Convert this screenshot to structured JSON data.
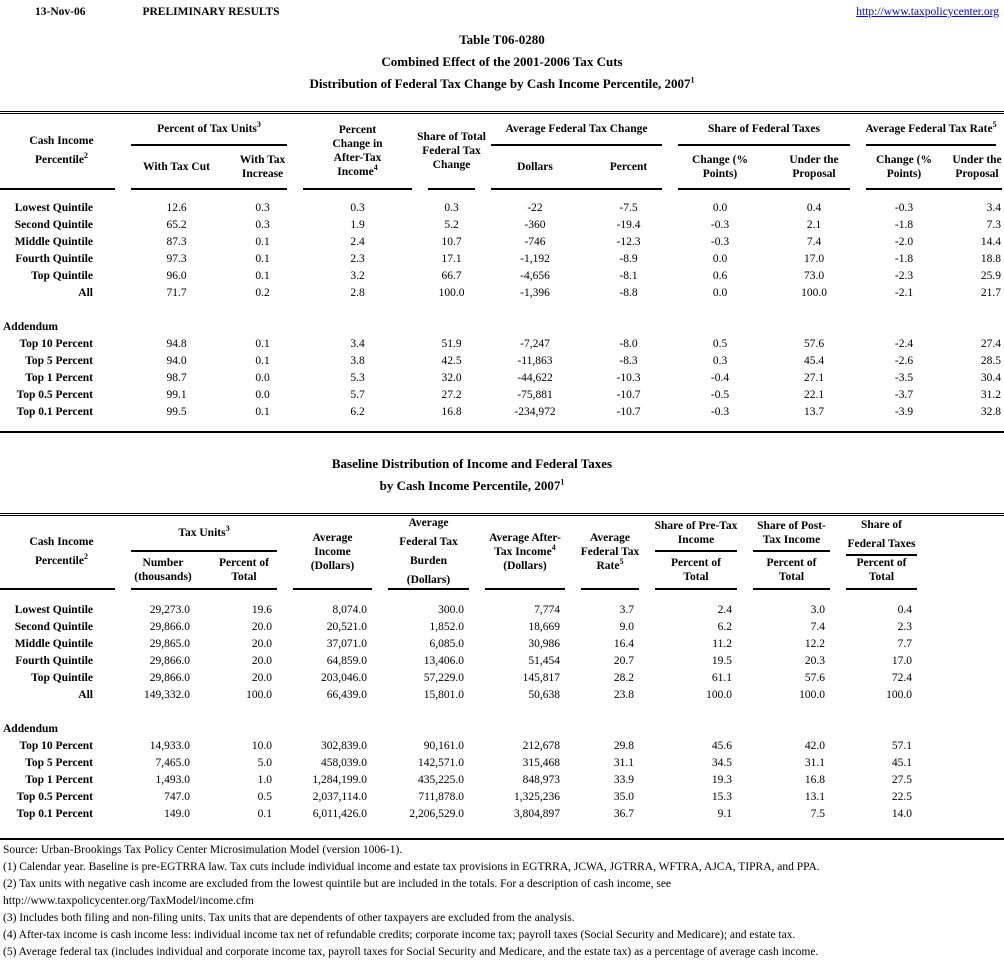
{
  "page": {
    "date": "13-Nov-06",
    "status": "PRELIMINARY RESULTS",
    "site_link": "http://www.taxpolicycenter.org",
    "colors": {
      "link": "#0000ee",
      "text": "#000000",
      "background": "#ffffff"
    }
  },
  "table1": {
    "title1": "Table T06-0280",
    "title2": "Combined Effect of the 2001-2006 Tax Cuts",
    "title3": {
      "pre": "Distribution of Federal Tax Change by Cash Income Percentile, 2007",
      "sup": "1"
    },
    "header": {
      "cash_income_percentile": {
        "pre": "Cash Income Percentile",
        "sup": "2"
      },
      "percent_of_tax_units": {
        "pre": "Percent of Tax Units",
        "sup": "3"
      },
      "with_tax_cut": "With Tax Cut",
      "with_tax_increase": "With Tax Increase",
      "pct_change_after_tax_income": {
        "pre": "Percent Change in After-Tax Income",
        "sup": "4"
      },
      "share_total_federal_tax_change": "Share of Total Federal Tax Change",
      "avg_federal_tax_change": "Average Federal Tax Change",
      "dollars": "Dollars",
      "percent": "Percent",
      "share_federal_taxes": "Share of Federal Taxes",
      "change_pct_points": "Change (% Points)",
      "under_the_proposal": "Under the Proposal",
      "avg_federal_tax_rate": {
        "pre": "Average Federal Tax Rate",
        "sup": "5"
      }
    },
    "rows": [
      {
        "label": "Lowest Quintile",
        "values": [
          "12.6",
          "0.3",
          "0.3",
          "0.3",
          "-22",
          "-7.5",
          "0.0",
          "0.4",
          "-0.3",
          "3.4"
        ]
      },
      {
        "label": "Second Quintile",
        "values": [
          "65.2",
          "0.3",
          "1.9",
          "5.2",
          "-360",
          "-19.4",
          "-0.3",
          "2.1",
          "-1.8",
          "7.3"
        ]
      },
      {
        "label": "Middle Quintile",
        "values": [
          "87.3",
          "0.1",
          "2.4",
          "10.7",
          "-746",
          "-12.3",
          "-0.3",
          "7.4",
          "-2.0",
          "14.4"
        ]
      },
      {
        "label": "Fourth Quintile",
        "values": [
          "97.3",
          "0.1",
          "2.3",
          "17.1",
          "-1,192",
          "-8.9",
          "0.0",
          "17.0",
          "-1.8",
          "18.8"
        ]
      },
      {
        "label": "Top Quintile",
        "values": [
          "96.0",
          "0.1",
          "3.2",
          "66.7",
          "-4,656",
          "-8.1",
          "0.6",
          "73.0",
          "-2.3",
          "25.9"
        ]
      },
      {
        "label": "All",
        "values": [
          "71.7",
          "0.2",
          "2.8",
          "100.0",
          "-1,396",
          "-8.8",
          "0.0",
          "100.0",
          "-2.1",
          "21.7"
        ]
      },
      {
        "type": "spacer"
      },
      {
        "type": "section",
        "label": "Addendum"
      },
      {
        "label": "Top 10 Percent",
        "values": [
          "94.8",
          "0.1",
          "3.4",
          "51.9",
          "-7,247",
          "-8.0",
          "0.5",
          "57.6",
          "-2.4",
          "27.4"
        ]
      },
      {
        "label": "Top 5 Percent",
        "values": [
          "94.0",
          "0.1",
          "3.8",
          "42.5",
          "-11,863",
          "-8.3",
          "0.3",
          "45.4",
          "-2.6",
          "28.5"
        ]
      },
      {
        "label": "Top 1 Percent",
        "values": [
          "98.7",
          "0.0",
          "5.3",
          "32.0",
          "-44,622",
          "-10.3",
          "-0.4",
          "27.1",
          "-3.5",
          "30.4"
        ]
      },
      {
        "label": "Top 0.5 Percent",
        "values": [
          "99.1",
          "0.0",
          "5.7",
          "27.2",
          "-75,881",
          "-10.7",
          "-0.5",
          "22.1",
          "-3.7",
          "31.2"
        ]
      },
      {
        "label": "Top 0.1 Percent",
        "values": [
          "99.5",
          "0.1",
          "6.2",
          "16.8",
          "-234,972",
          "-10.7",
          "-0.3",
          "13.7",
          "-3.9",
          "32.8"
        ]
      }
    ]
  },
  "table2": {
    "title1": "Baseline Distribution of Income and Federal Taxes",
    "title2": {
      "pre": "by Cash Income Percentile, 2007",
      "sup": "1"
    },
    "header": {
      "cash_income_percentile": {
        "pre": "Cash Income Percentile",
        "sup": "2"
      },
      "tax_units": {
        "pre": "Tax Units",
        "sup": "3"
      },
      "number_thousands": "Number (thousands)",
      "percent_of_total": "Percent of Total",
      "average_income": "Average Income (Dollars)",
      "average_federal_tax_burden": "Average Federal Tax Burden (Dollars)",
      "average_after_tax_income": {
        "pre": "Average After-Tax Income",
        "sup": "4",
        "post": " (Dollars)"
      },
      "average_federal_tax_rate": {
        "pre": "Average Federal Tax Rate",
        "sup": "5"
      },
      "share_pre_tax_income": "Share of Pre-Tax Income",
      "share_post_tax_income": "Share of Post-Tax Income",
      "share_federal_taxes": "Share of Federal Taxes"
    },
    "rows": [
      {
        "label": "Lowest Quintile",
        "values": [
          "29,273.0",
          "19.6",
          "8,074.0",
          "300.0",
          "7,774",
          "3.7",
          "2.4",
          "3.0",
          "0.4"
        ]
      },
      {
        "label": "Second Quintile",
        "values": [
          "29,866.0",
          "20.0",
          "20,521.0",
          "1,852.0",
          "18,669",
          "9.0",
          "6.2",
          "7.4",
          "2.3"
        ]
      },
      {
        "label": "Middle Quintile",
        "values": [
          "29,865.0",
          "20.0",
          "37,071.0",
          "6,085.0",
          "30,986",
          "16.4",
          "11.2",
          "12.2",
          "7.7"
        ]
      },
      {
        "label": "Fourth Quintile",
        "values": [
          "29,866.0",
          "20.0",
          "64,859.0",
          "13,406.0",
          "51,454",
          "20.7",
          "19.5",
          "20.3",
          "17.0"
        ]
      },
      {
        "label": "Top Quintile",
        "values": [
          "29,866.0",
          "20.0",
          "203,046.0",
          "57,229.0",
          "145,817",
          "28.2",
          "61.1",
          "57.6",
          "72.4"
        ]
      },
      {
        "label": "All",
        "values": [
          "149,332.0",
          "100.0",
          "66,439.0",
          "15,801.0",
          "50,638",
          "23.8",
          "100.0",
          "100.0",
          "100.0"
        ]
      },
      {
        "type": "spacer"
      },
      {
        "type": "section",
        "label": "Addendum"
      },
      {
        "label": "Top 10 Percent",
        "values": [
          "14,933.0",
          "10.0",
          "302,839.0",
          "90,161.0",
          "212,678",
          "29.8",
          "45.6",
          "42.0",
          "57.1"
        ]
      },
      {
        "label": "Top 5 Percent",
        "values": [
          "7,465.0",
          "5.0",
          "458,039.0",
          "142,571.0",
          "315,468",
          "31.1",
          "34.5",
          "31.1",
          "45.1"
        ]
      },
      {
        "label": "Top 1 Percent",
        "values": [
          "1,493.0",
          "1.0",
          "1,284,199.0",
          "435,225.0",
          "848,973",
          "33.9",
          "19.3",
          "16.8",
          "27.5"
        ]
      },
      {
        "label": "Top 0.5 Percent",
        "values": [
          "747.0",
          "0.5",
          "2,037,114.0",
          "711,878.0",
          "1,325,236",
          "35.0",
          "15.3",
          "13.1",
          "22.5"
        ]
      },
      {
        "label": "Top 0.1 Percent",
        "values": [
          "149.0",
          "0.1",
          "6,011,426.0",
          "2,206,529.0",
          "3,804,897",
          "36.7",
          "9.1",
          "7.5",
          "14.0"
        ]
      }
    ]
  },
  "footnotes": [
    "Source: Urban-Brookings Tax Policy Center Microsimulation Model (version 1006-1).",
    "(1) Calendar year. Baseline is pre-EGTRRA law. Tax cuts include individual income and estate tax provisions in EGTRRA, JCWA, JGTRRA, WFTRA, AJCA, TIPRA, and PPA.",
    "(2) Tax units with negative cash income are excluded from the lowest quintile but are included in the totals. For a description of cash income, see",
    "http://www.taxpolicycenter.org/TaxModel/income.cfm",
    "(3) Includes both filing and non-filing units.  Tax units that are dependents of other taxpayers are excluded from the analysis.",
    "(4) After-tax income is cash income less: individual income tax net of refundable credits; corporate income tax; payroll taxes (Social Security and Medicare); and estate tax.",
    "(5) Average federal tax (includes individual and corporate income tax, payroll taxes for Social Security and Medicare, and the estate tax) as a percentage of average cash income."
  ]
}
